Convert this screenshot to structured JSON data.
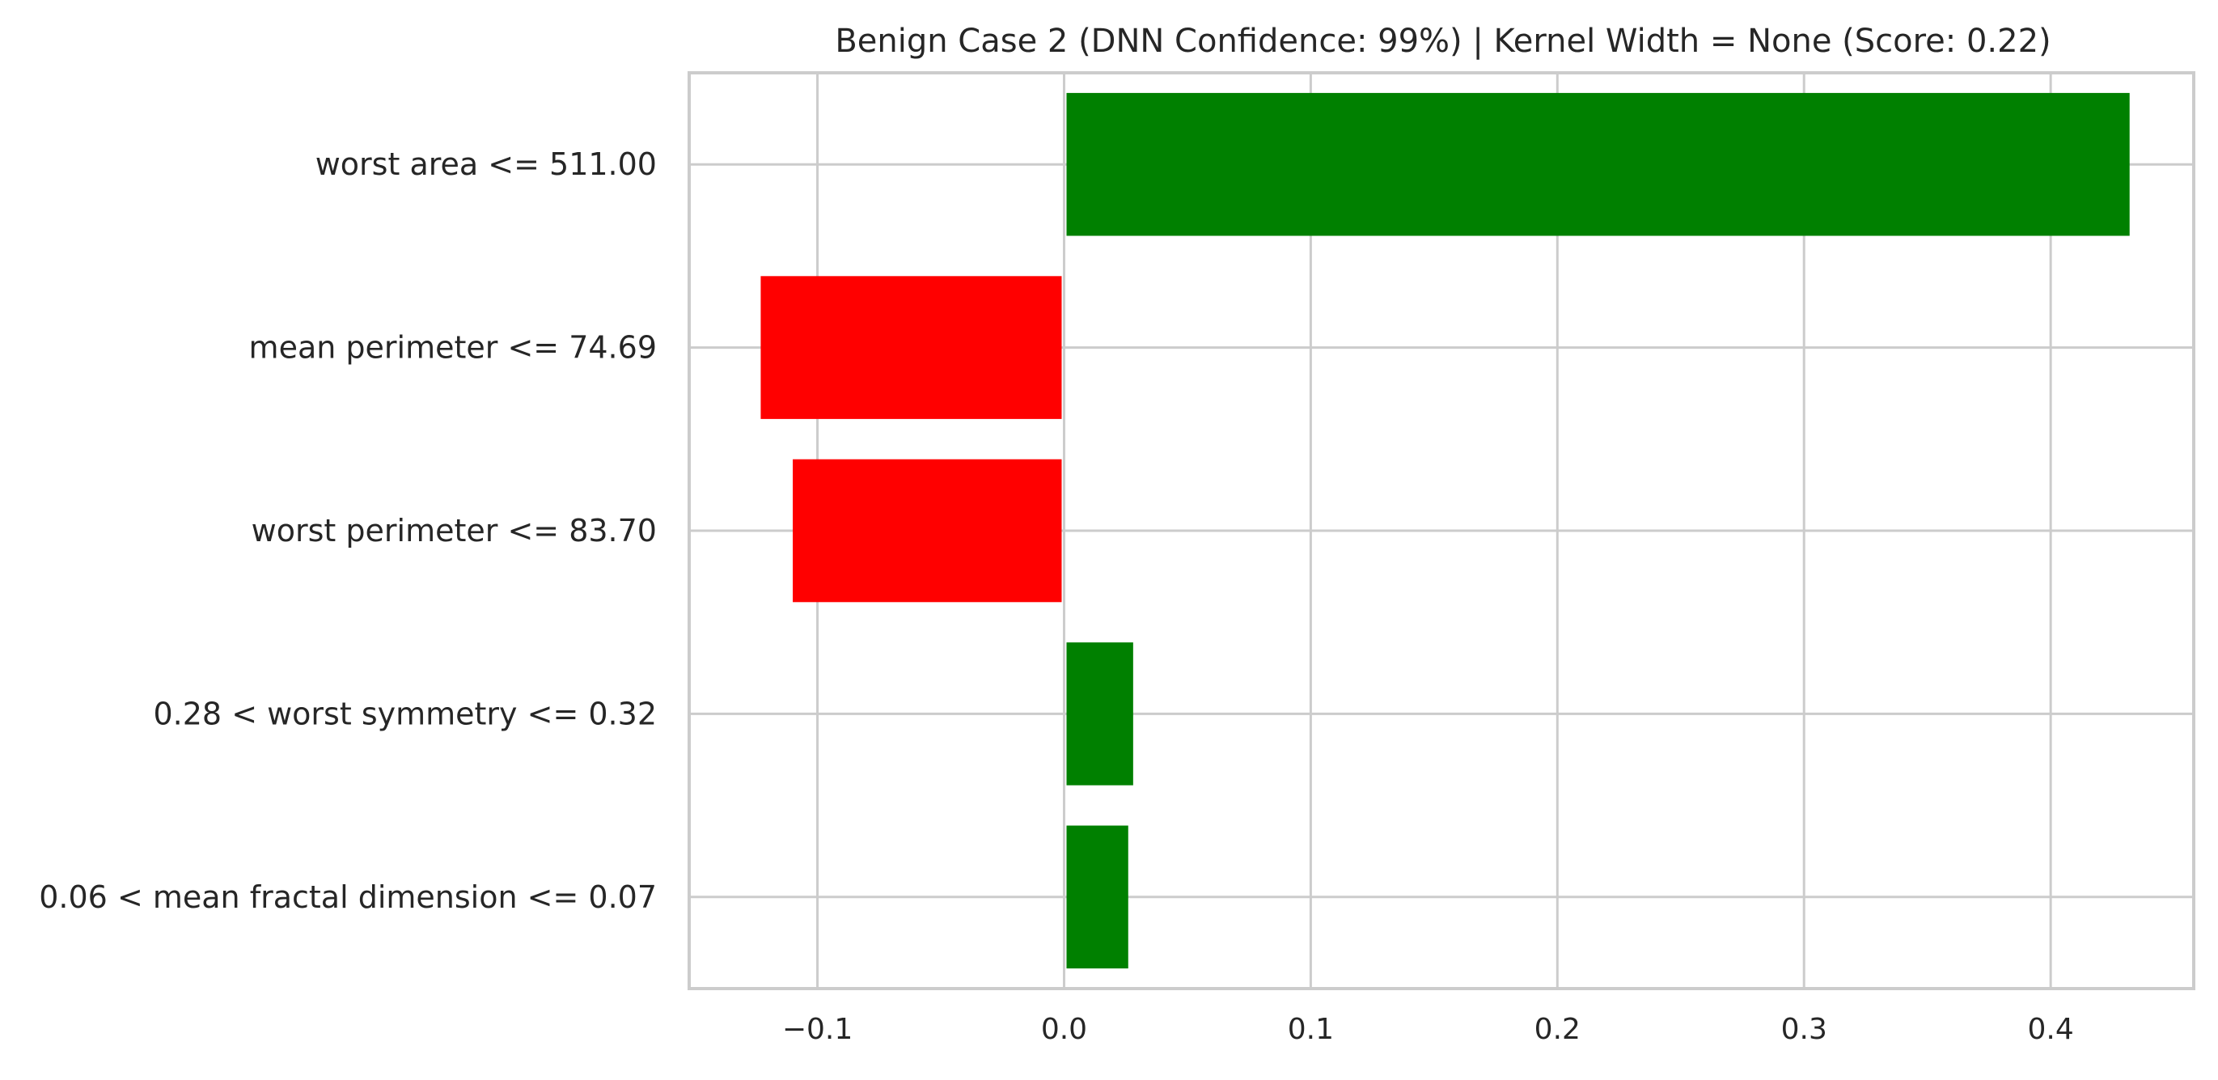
{
  "chart_data": {
    "type": "bar",
    "orientation": "horizontal",
    "title": "Benign Case 2 (DNN Confidence: 99%) | Kernel Width = None (Score: 0.22)",
    "xlabel": "",
    "ylabel": "",
    "categories": [
      "worst area <= 511.00",
      "mean perimeter <= 74.69",
      "worst perimeter <= 83.70",
      "0.28 < worst symmetry <= 0.32",
      "0.06 < mean fractal dimension <= 0.07"
    ],
    "values": [
      0.432,
      -0.123,
      -0.11,
      0.028,
      0.026
    ],
    "xlim": [
      -0.152,
      0.458
    ],
    "xticks": [
      -0.1,
      0.0,
      0.1,
      0.2,
      0.3,
      0.4
    ],
    "xtick_labels": [
      "−0.1",
      "0.0",
      "0.1",
      "0.2",
      "0.3",
      "0.4"
    ],
    "grid": true,
    "legend": "none",
    "colors": {
      "positive": "#008000",
      "negative": "#ff0000",
      "grid": "#cccccc",
      "frame": "#cccccc",
      "text": "#262626"
    }
  }
}
